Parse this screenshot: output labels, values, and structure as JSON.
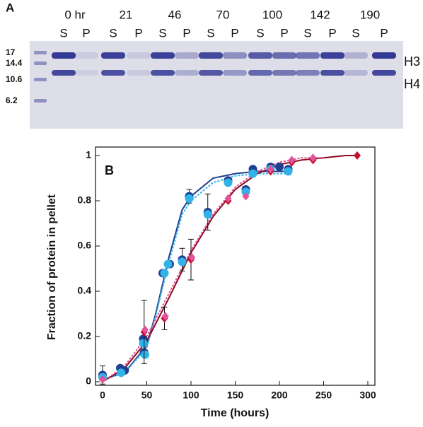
{
  "gel": {
    "panel_label": "A",
    "lanes": [
      {
        "time": "0 hr",
        "s": "S",
        "p": "P"
      },
      {
        "time": "21",
        "s": "S",
        "p": "P"
      },
      {
        "time": "46",
        "s": "S",
        "p": "P"
      },
      {
        "time": "70",
        "s": "S",
        "p": "P"
      },
      {
        "time": "100",
        "s": "S",
        "p": "P"
      },
      {
        "time": "142",
        "s": "S",
        "p": "P"
      },
      {
        "time": "190",
        "s": "S",
        "p": "P"
      }
    ],
    "markers": [
      "17",
      "14.4",
      "10.6",
      "6.2"
    ],
    "bands": [
      "H3",
      "H4"
    ]
  },
  "chart_data": {
    "type": "scatter",
    "panel_label": "B",
    "x_label": "Time (hours)",
    "y_label": "Fraction of protein in pellet",
    "xlim": [
      0,
      300
    ],
    "xticks": [
      0,
      50,
      100,
      150,
      200,
      250,
      300
    ],
    "ylim": [
      0,
      1
    ],
    "yticks": [
      0,
      0.2,
      0.4,
      0.6,
      0.8,
      1
    ],
    "series": [
      {
        "color": "#1f3f8f",
        "marker": "circle",
        "x": [
          0,
          20,
          25,
          46,
          47,
          68,
          76,
          90,
          98,
          119,
          142,
          162,
          170,
          190,
          200,
          210
        ],
        "values": [
          0.03,
          0.06,
          0.05,
          0.19,
          0.13,
          0.48,
          0.52,
          0.54,
          0.82,
          0.75,
          0.89,
          0.85,
          0.94,
          0.95,
          0.95,
          0.94
        ],
        "errors": [
          0.04,
          null,
          null,
          null,
          null,
          null,
          null,
          0.05,
          0.03,
          0.08,
          null,
          null,
          null,
          null,
          null,
          null
        ]
      },
      {
        "color": "#2fb3e8",
        "marker": "circle",
        "x": [
          0,
          21,
          46,
          48,
          70,
          74,
          90,
          98,
          119,
          142,
          162,
          170,
          190,
          210
        ],
        "values": [
          0.02,
          0.04,
          0.17,
          0.12,
          0.48,
          0.52,
          0.53,
          0.81,
          0.74,
          0.88,
          0.84,
          0.92,
          0.94,
          0.93
        ]
      },
      {
        "color": "#c8102e",
        "marker": "diamond",
        "x": [
          0,
          47,
          70,
          100,
          142,
          190,
          214,
          238,
          288
        ],
        "values": [
          0.01,
          0.22,
          0.28,
          0.54,
          0.8,
          0.93,
          0.97,
          0.98,
          1
        ],
        "errors": [
          null,
          0.14,
          0.05,
          0.09,
          null,
          null,
          null,
          null,
          null
        ]
      },
      {
        "color": "#e0559a",
        "marker": "diamond",
        "x": [
          0,
          48,
          71,
          101,
          142,
          162,
          190,
          214,
          238
        ],
        "values": [
          0.01,
          0.23,
          0.29,
          0.55,
          0.81,
          0.82,
          0.94,
          0.98,
          0.99
        ]
      }
    ],
    "fits": [
      {
        "color": "#1f3f8f",
        "dashed": false,
        "x": [
          0,
          25,
          50,
          60,
          75,
          90,
          100,
          125,
          150,
          175,
          200,
          210
        ],
        "values": [
          0.01,
          0.04,
          0.16,
          0.3,
          0.55,
          0.76,
          0.82,
          0.9,
          0.92,
          0.93,
          0.93,
          0.93
        ]
      },
      {
        "color": "#2fb3e8",
        "dashed": true,
        "x": [
          0,
          25,
          50,
          60,
          75,
          90,
          100,
          125,
          150,
          175,
          200,
          210
        ],
        "values": [
          0.01,
          0.04,
          0.15,
          0.29,
          0.53,
          0.74,
          0.8,
          0.88,
          0.91,
          0.92,
          0.92,
          0.92
        ]
      },
      {
        "color": "#8b0a1e",
        "dashed": false,
        "x": [
          0,
          25,
          50,
          75,
          100,
          125,
          150,
          175,
          200,
          225,
          250,
          275,
          290
        ],
        "values": [
          0,
          0.06,
          0.18,
          0.37,
          0.57,
          0.73,
          0.85,
          0.92,
          0.96,
          0.98,
          0.99,
          1,
          1
        ]
      },
      {
        "color": "#e0559a",
        "dashed": true,
        "x": [
          0,
          25,
          50,
          75,
          100,
          125,
          150,
          175,
          200,
          225,
          250
        ],
        "values": [
          0,
          0.07,
          0.2,
          0.39,
          0.58,
          0.74,
          0.86,
          0.93,
          0.97,
          0.99,
          0.99
        ]
      }
    ]
  }
}
